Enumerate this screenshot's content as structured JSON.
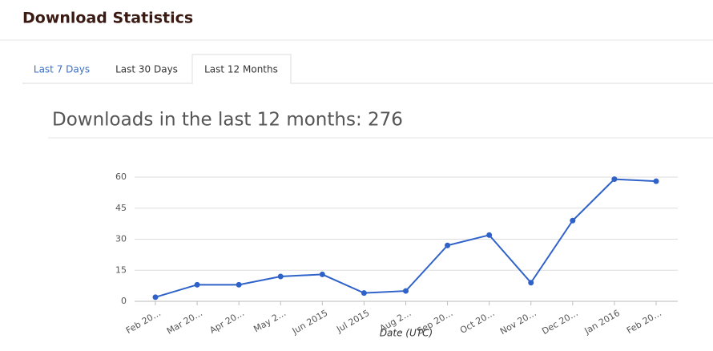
{
  "header": {
    "title": "Download Statistics"
  },
  "tabs": [
    "Last 7 Days",
    "Last 30 Days",
    "Last 12 Months"
  ],
  "chart_data": {
    "type": "line",
    "title": "Downloads in the last 12 months: 276",
    "x_label": "Date (UTC)",
    "categories": [
      "Feb 20…",
      "Mar 20…",
      "Apr 20…",
      "May 2…",
      "Jun 2015",
      "Jul 2015",
      "Aug 2…",
      "Sep 20…",
      "Oct 20…",
      "Nov 20…",
      "Dec 20…",
      "Jan 2016",
      "Feb 20…"
    ],
    "values": [
      2,
      8,
      8,
      12,
      13,
      4,
      5,
      27,
      32,
      9,
      39,
      59,
      58
    ],
    "color": "#2f62c9",
    "ylim": [
      0,
      60
    ],
    "yticks": [
      0,
      15,
      30,
      45,
      60
    ],
    "grid": true
  }
}
